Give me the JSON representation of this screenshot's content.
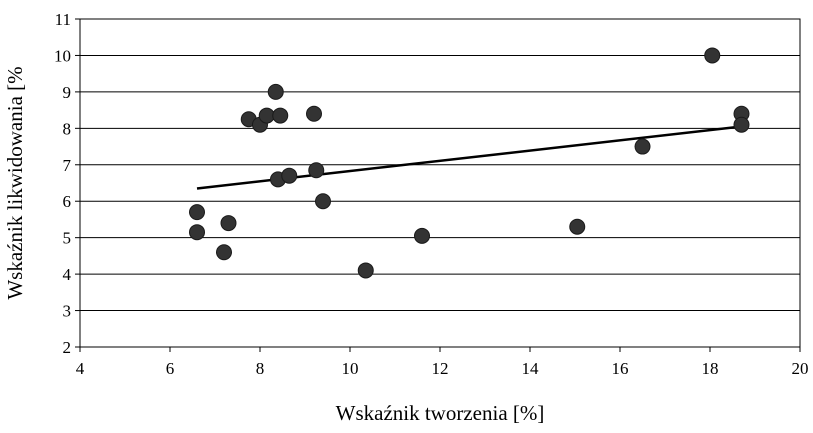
{
  "chart_data": {
    "type": "scatter",
    "xlabel": "Wskaźnik tworzenia [%]",
    "ylabel": "Wskaźnik likwidowania [%",
    "xlim": [
      4,
      20
    ],
    "ylim": [
      2,
      11
    ],
    "x_ticks": [
      4,
      6,
      8,
      10,
      12,
      14,
      16,
      18,
      20
    ],
    "y_ticks": [
      2,
      3,
      4,
      5,
      6,
      7,
      8,
      9,
      10,
      11
    ],
    "grid": "horizontal",
    "legend": "none",
    "colors": {
      "marker": "#333333",
      "trendline": "#000000",
      "grid": "#000000",
      "plot_bg": "#ffffff"
    },
    "series": [
      {
        "points": [
          {
            "x": 6.6,
            "y": 5.7
          },
          {
            "x": 6.6,
            "y": 5.15
          },
          {
            "x": 7.2,
            "y": 4.6
          },
          {
            "x": 7.3,
            "y": 5.4
          },
          {
            "x": 7.75,
            "y": 8.25
          },
          {
            "x": 8.0,
            "y": 8.1
          },
          {
            "x": 8.15,
            "y": 8.35
          },
          {
            "x": 8.35,
            "y": 9.0
          },
          {
            "x": 8.4,
            "y": 6.6
          },
          {
            "x": 8.45,
            "y": 8.35
          },
          {
            "x": 8.65,
            "y": 6.7
          },
          {
            "x": 9.2,
            "y": 8.4
          },
          {
            "x": 9.25,
            "y": 6.85
          },
          {
            "x": 9.4,
            "y": 6.0
          },
          {
            "x": 10.35,
            "y": 4.1
          },
          {
            "x": 11.6,
            "y": 5.05
          },
          {
            "x": 15.05,
            "y": 5.3
          },
          {
            "x": 16.5,
            "y": 7.5
          },
          {
            "x": 18.05,
            "y": 10.0
          },
          {
            "x": 18.7,
            "y": 8.4
          },
          {
            "x": 18.7,
            "y": 8.1
          }
        ]
      }
    ],
    "trendline": {
      "x": [
        6.6,
        18.7
      ],
      "y": [
        6.35,
        8.05
      ]
    }
  }
}
